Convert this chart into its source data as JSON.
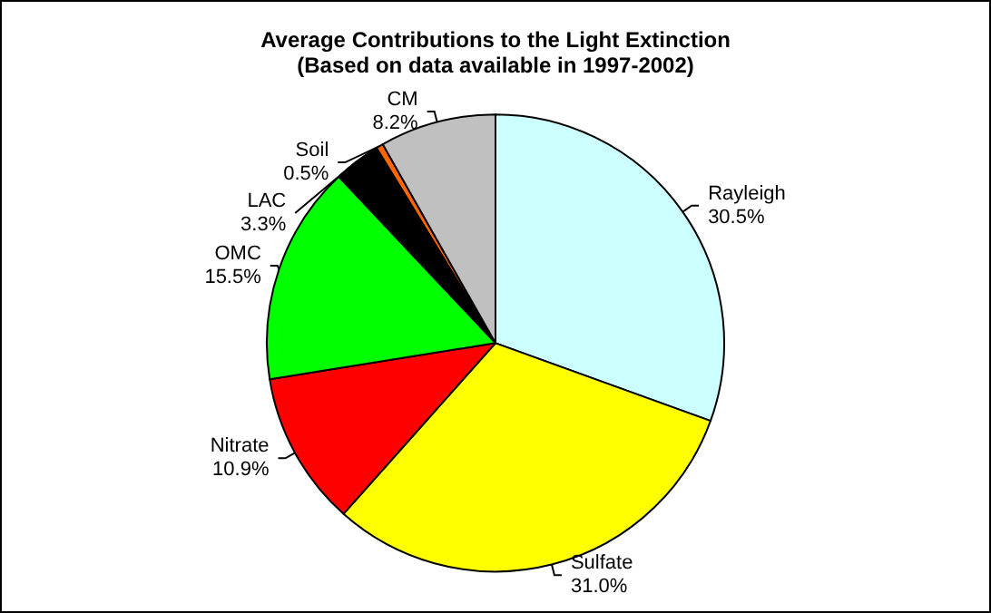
{
  "chart_data": {
    "type": "pie",
    "title": "Average Contributions to the Light Extinction",
    "subtitle": "(Based on data available in 1997-2002)",
    "categories": [
      "Rayleigh",
      "Sulfate",
      "Nitrate",
      "OMC",
      "LAC",
      "Soil",
      "CM"
    ],
    "values": [
      30.5,
      31.0,
      10.9,
      15.5,
      3.3,
      0.5,
      8.2
    ],
    "value_labels": [
      "30.5%",
      "31.0%",
      "10.9%",
      "15.5%",
      "3.3%",
      "0.5%",
      "8.2%"
    ],
    "colors": [
      "#ccffff",
      "#ffff00",
      "#ff0000",
      "#00ff00",
      "#000000",
      "#ff6600",
      "#c0c0c0"
    ],
    "legend": false
  }
}
